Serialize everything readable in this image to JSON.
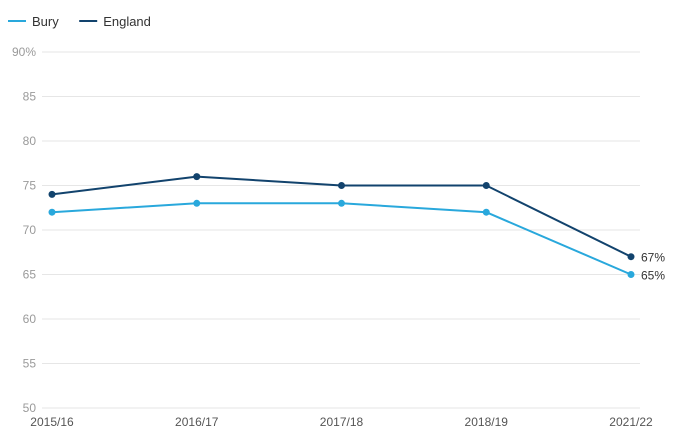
{
  "chart_data": {
    "type": "line",
    "x": [
      "2015/16",
      "2016/17",
      "2017/18",
      "2018/19",
      "2021/22"
    ],
    "series": [
      {
        "name": "Bury",
        "color": "#29a8dc",
        "values": [
          72,
          73,
          73,
          72,
          65
        ],
        "end_label": "65%"
      },
      {
        "name": "England",
        "color": "#12436d",
        "values": [
          74,
          76,
          75,
          75,
          67
        ],
        "end_label": "67%"
      }
    ],
    "y_ticks": [
      50,
      55,
      60,
      65,
      70,
      75,
      80,
      85,
      90
    ],
    "y_tick_labels": [
      "50",
      "55",
      "60",
      "65",
      "70",
      "75",
      "80",
      "85",
      "90%"
    ],
    "ylim": [
      50,
      90
    ],
    "grid": true,
    "legend_position": "top-left",
    "title": "",
    "xlabel": "",
    "ylabel": ""
  }
}
